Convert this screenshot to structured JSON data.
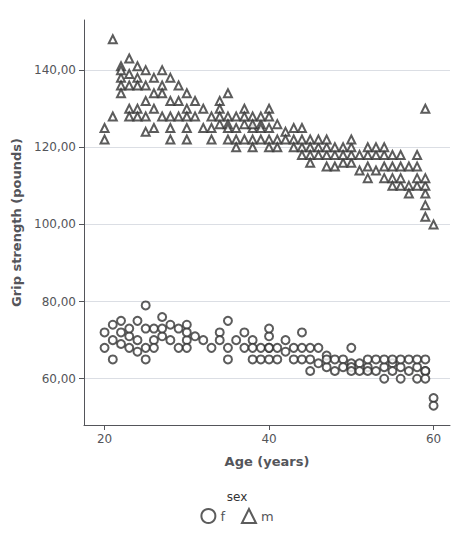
{
  "chart_data": {
    "type": "scatter",
    "xlabel": "Age (years)",
    "ylabel": "Grip strength (pounds)",
    "xlim": [
      17.5,
      62
    ],
    "ylim": [
      48,
      153
    ],
    "xticks": [
      20,
      40,
      60
    ],
    "yticks": [
      {
        "value": 60.0,
        "label": "60,00"
      },
      {
        "value": 80.0,
        "label": "80,00"
      },
      {
        "value": 100.0,
        "label": "100,00"
      },
      {
        "value": 120.0,
        "label": "120,00"
      },
      {
        "value": 140.0,
        "label": "140,00"
      }
    ],
    "grid": "y",
    "legend": "bottom",
    "legend_title": "sex",
    "series": [
      {
        "name": "f",
        "marker": "circle",
        "color": "#333333",
        "values": [
          [
            20,
            72
          ],
          [
            20,
            68
          ],
          [
            21,
            70
          ],
          [
            21,
            65
          ],
          [
            21,
            74
          ],
          [
            22,
            72
          ],
          [
            22,
            69
          ],
          [
            22,
            75
          ],
          [
            23,
            71
          ],
          [
            23,
            68
          ],
          [
            23,
            73
          ],
          [
            24,
            75
          ],
          [
            24,
            70
          ],
          [
            24,
            67
          ],
          [
            25,
            79
          ],
          [
            25,
            73
          ],
          [
            25,
            68
          ],
          [
            25,
            65
          ],
          [
            26,
            70
          ],
          [
            26,
            73
          ],
          [
            26,
            68
          ],
          [
            27,
            76
          ],
          [
            27,
            71
          ],
          [
            27,
            73
          ],
          [
            28,
            74
          ],
          [
            28,
            70
          ],
          [
            29,
            73
          ],
          [
            29,
            68
          ],
          [
            30,
            70
          ],
          [
            30,
            74
          ],
          [
            30,
            68
          ],
          [
            30,
            72
          ],
          [
            31,
            71
          ],
          [
            32,
            70
          ],
          [
            33,
            68
          ],
          [
            34,
            72
          ],
          [
            34,
            70
          ],
          [
            35,
            75
          ],
          [
            35,
            68
          ],
          [
            35,
            65
          ],
          [
            36,
            70
          ],
          [
            37,
            72
          ],
          [
            37,
            68
          ],
          [
            38,
            70
          ],
          [
            38,
            65
          ],
          [
            38,
            68
          ],
          [
            39,
            68
          ],
          [
            39,
            65
          ],
          [
            40,
            71
          ],
          [
            40,
            68
          ],
          [
            40,
            73
          ],
          [
            40,
            68
          ],
          [
            40,
            65
          ],
          [
            41,
            68
          ],
          [
            41,
            65
          ],
          [
            42,
            70
          ],
          [
            42,
            67
          ],
          [
            43,
            68
          ],
          [
            43,
            65
          ],
          [
            44,
            72
          ],
          [
            44,
            68
          ],
          [
            44,
            65
          ],
          [
            45,
            68
          ],
          [
            45,
            65
          ],
          [
            45,
            62
          ],
          [
            46,
            68
          ],
          [
            46,
            64
          ],
          [
            47,
            66
          ],
          [
            47,
            63
          ],
          [
            47,
            65
          ],
          [
            48,
            65
          ],
          [
            48,
            62
          ],
          [
            49,
            65
          ],
          [
            49,
            63
          ],
          [
            50,
            64
          ],
          [
            50,
            63
          ],
          [
            50,
            68
          ],
          [
            50,
            62
          ],
          [
            51,
            64
          ],
          [
            51,
            62
          ],
          [
            52,
            63
          ],
          [
            52,
            65
          ],
          [
            52,
            62
          ],
          [
            53,
            62
          ],
          [
            53,
            65
          ],
          [
            54,
            63
          ],
          [
            54,
            60
          ],
          [
            54,
            65
          ],
          [
            55,
            64
          ],
          [
            55,
            62
          ],
          [
            55,
            65
          ],
          [
            56,
            63
          ],
          [
            56,
            60
          ],
          [
            56,
            65
          ],
          [
            57,
            62
          ],
          [
            57,
            65
          ],
          [
            58,
            63
          ],
          [
            58,
            60
          ],
          [
            58,
            65
          ],
          [
            59,
            62
          ],
          [
            59,
            65
          ],
          [
            59,
            62
          ],
          [
            59,
            60
          ],
          [
            60,
            55
          ],
          [
            60,
            53
          ]
        ]
      },
      {
        "name": "m",
        "marker": "triangle",
        "color": "#333333",
        "values": [
          [
            20,
            125
          ],
          [
            20,
            122
          ],
          [
            21,
            148
          ],
          [
            21,
            128
          ],
          [
            22,
            141
          ],
          [
            22,
            138
          ],
          [
            22,
            136
          ],
          [
            22,
            134
          ],
          [
            22,
            140
          ],
          [
            23,
            143
          ],
          [
            23,
            139
          ],
          [
            23,
            136
          ],
          [
            23,
            130
          ],
          [
            23,
            128
          ],
          [
            24,
            141
          ],
          [
            24,
            138
          ],
          [
            24,
            136
          ],
          [
            24,
            130
          ],
          [
            24,
            128
          ],
          [
            25,
            140
          ],
          [
            25,
            136
          ],
          [
            25,
            132
          ],
          [
            25,
            128
          ],
          [
            25,
            124
          ],
          [
            26,
            138
          ],
          [
            26,
            134
          ],
          [
            26,
            130
          ],
          [
            26,
            125
          ],
          [
            27,
            140
          ],
          [
            27,
            136
          ],
          [
            27,
            134
          ],
          [
            27,
            128
          ],
          [
            28,
            138
          ],
          [
            28,
            132
          ],
          [
            28,
            128
          ],
          [
            28,
            125
          ],
          [
            28,
            122
          ],
          [
            29,
            136
          ],
          [
            29,
            132
          ],
          [
            29,
            128
          ],
          [
            30,
            134
          ],
          [
            30,
            130
          ],
          [
            30,
            125
          ],
          [
            30,
            122
          ],
          [
            30,
            128
          ],
          [
            31,
            132
          ],
          [
            31,
            128
          ],
          [
            32,
            130
          ],
          [
            32,
            125
          ],
          [
            33,
            128
          ],
          [
            33,
            125
          ],
          [
            33,
            122
          ],
          [
            34,
            132
          ],
          [
            34,
            130
          ],
          [
            34,
            126
          ],
          [
            34,
            128
          ],
          [
            35,
            134
          ],
          [
            35,
            128
          ],
          [
            35,
            126
          ],
          [
            35,
            122
          ],
          [
            35,
            125
          ],
          [
            36,
            128
          ],
          [
            36,
            125
          ],
          [
            36,
            122
          ],
          [
            36,
            120
          ],
          [
            37,
            130
          ],
          [
            37,
            126
          ],
          [
            37,
            128
          ],
          [
            37,
            122
          ],
          [
            38,
            128
          ],
          [
            38,
            125
          ],
          [
            38,
            122
          ],
          [
            38,
            120
          ],
          [
            38,
            126
          ],
          [
            39,
            126
          ],
          [
            39,
            128
          ],
          [
            39,
            125
          ],
          [
            39,
            122
          ],
          [
            40,
            125
          ],
          [
            40,
            122
          ],
          [
            40,
            130
          ],
          [
            40,
            128
          ],
          [
            40,
            120
          ],
          [
            41,
            126
          ],
          [
            41,
            122
          ],
          [
            41,
            120
          ],
          [
            42,
            124
          ],
          [
            42,
            122
          ],
          [
            43,
            122
          ],
          [
            43,
            120
          ],
          [
            43,
            125
          ],
          [
            44,
            125
          ],
          [
            44,
            120
          ],
          [
            44,
            118
          ],
          [
            44,
            122
          ],
          [
            45,
            122
          ],
          [
            45,
            120
          ],
          [
            45,
            118
          ],
          [
            45,
            116
          ],
          [
            46,
            120
          ],
          [
            46,
            118
          ],
          [
            46,
            122
          ],
          [
            47,
            118
          ],
          [
            47,
            115
          ],
          [
            47,
            120
          ],
          [
            47,
            122
          ],
          [
            48,
            118
          ],
          [
            48,
            120
          ],
          [
            48,
            115
          ],
          [
            49,
            116
          ],
          [
            49,
            120
          ],
          [
            49,
            118
          ],
          [
            50,
            116
          ],
          [
            50,
            118
          ],
          [
            50,
            120
          ],
          [
            50,
            122
          ],
          [
            51,
            114
          ],
          [
            51,
            118
          ],
          [
            52,
            115
          ],
          [
            52,
            112
          ],
          [
            52,
            118
          ],
          [
            52,
            120
          ],
          [
            53,
            114
          ],
          [
            53,
            118
          ],
          [
            53,
            120
          ],
          [
            54,
            112
          ],
          [
            54,
            115
          ],
          [
            54,
            118
          ],
          [
            54,
            120
          ],
          [
            55,
            112
          ],
          [
            55,
            110
          ],
          [
            55,
            115
          ],
          [
            55,
            118
          ],
          [
            56,
            110
          ],
          [
            56,
            112
          ],
          [
            56,
            115
          ],
          [
            56,
            118
          ],
          [
            57,
            110
          ],
          [
            57,
            108
          ],
          [
            57,
            115
          ],
          [
            58,
            110
          ],
          [
            58,
            112
          ],
          [
            58,
            115
          ],
          [
            58,
            118
          ],
          [
            59,
            108
          ],
          [
            59,
            110
          ],
          [
            59,
            112
          ],
          [
            59,
            130
          ],
          [
            59,
            105
          ],
          [
            59,
            102
          ],
          [
            60,
            100
          ]
        ]
      }
    ]
  }
}
